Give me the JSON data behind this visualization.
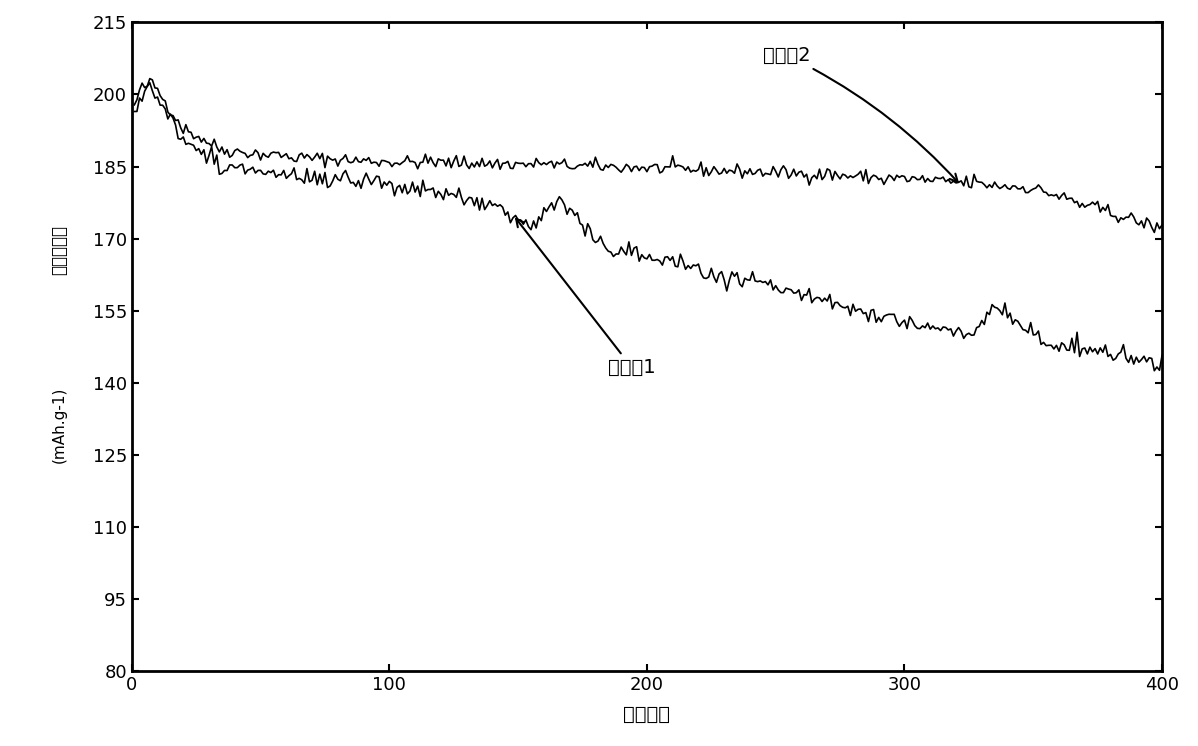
{
  "xlabel": "循环圈数",
  "ylabel": "放电比容量（mAh·g-1）",
  "ylabel_line1": "放电比容量",
  "ylabel_line2": "(mAh.g-1)",
  "xlim": [
    0,
    400
  ],
  "ylim": [
    80,
    215
  ],
  "yticks": [
    80,
    95,
    110,
    125,
    140,
    155,
    170,
    185,
    200,
    215
  ],
  "xticks": [
    0,
    100,
    200,
    300,
    400
  ],
  "label1": "实施例2",
  "label2": "对比例1",
  "line_color": "#000000",
  "bg_color": "#ffffff",
  "face_color": "#ffffff"
}
